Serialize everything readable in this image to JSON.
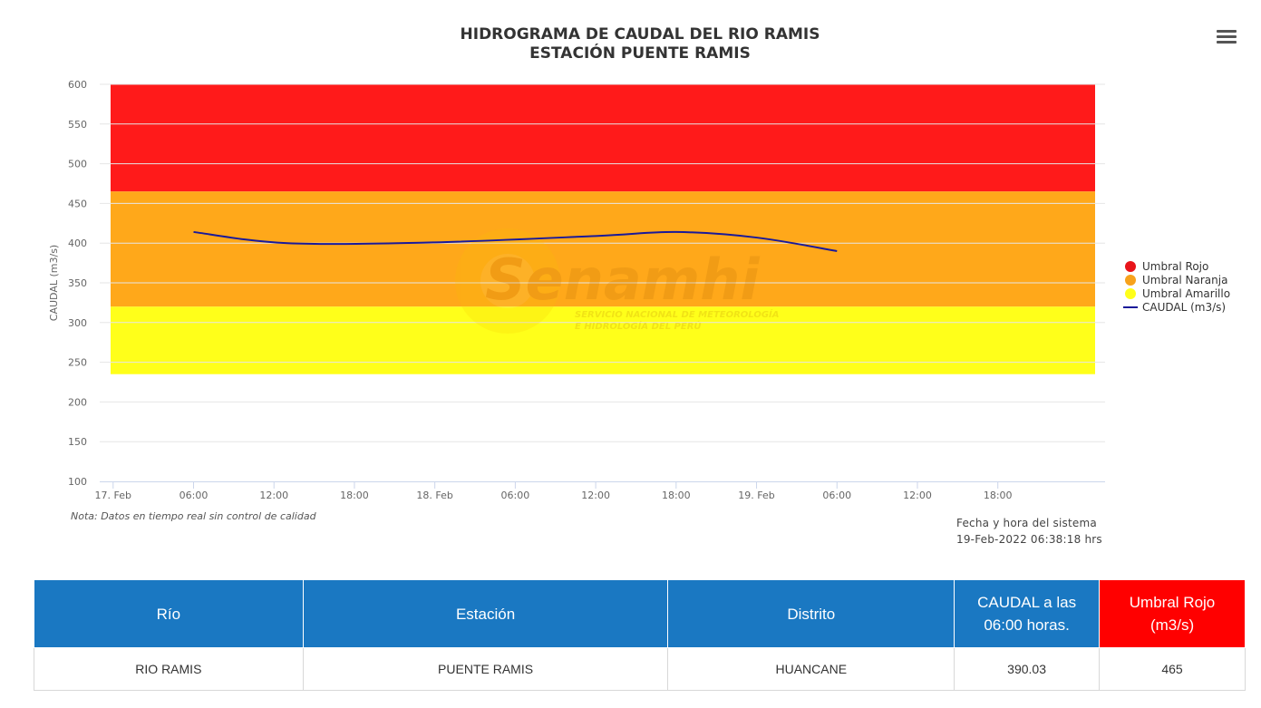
{
  "chart_data": {
    "type": "line",
    "title": "HIDROGRAMA DE CAUDAL DEL RIO RAMIS",
    "subtitle": "ESTACIÓN PUENTE RAMIS",
    "ylabel": "CAUDAL (m3/s)",
    "xlabel": "",
    "ylim": [
      100,
      600
    ],
    "yticks": [
      100,
      150,
      200,
      250,
      300,
      350,
      400,
      450,
      500,
      550,
      600
    ],
    "xlim": [
      "2022-02-16 23:00",
      "2022-02-20 02:00"
    ],
    "xticks": [
      {
        "t": "2022-02-17 00:00",
        "label": "17. Feb"
      },
      {
        "t": "2022-02-17 06:00",
        "label": "06:00"
      },
      {
        "t": "2022-02-17 12:00",
        "label": "12:00"
      },
      {
        "t": "2022-02-17 18:00",
        "label": "18:00"
      },
      {
        "t": "2022-02-18 00:00",
        "label": "18. Feb"
      },
      {
        "t": "2022-02-18 06:00",
        "label": "06:00"
      },
      {
        "t": "2022-02-18 12:00",
        "label": "12:00"
      },
      {
        "t": "2022-02-18 18:00",
        "label": "18:00"
      },
      {
        "t": "2022-02-19 00:00",
        "label": "19. Feb"
      },
      {
        "t": "2022-02-19 06:00",
        "label": "06:00"
      },
      {
        "t": "2022-02-19 12:00",
        "label": "12:00"
      },
      {
        "t": "2022-02-19 18:00",
        "label": "18:00"
      }
    ],
    "bands": [
      {
        "name": "Umbral Rojo",
        "from": 465,
        "to": 600,
        "color": "#ff1a1a"
      },
      {
        "name": "Umbral Naranja",
        "from": 320,
        "to": 465,
        "color": "#ffa81a"
      },
      {
        "name": "Umbral Amarillo",
        "from": 235,
        "to": 320,
        "color": "#ffff1a"
      }
    ],
    "series": [
      {
        "name": "CAUDAL (m3/s)",
        "color": "#1a1a99",
        "points": [
          {
            "t": "2022-02-17 06:00",
            "y": 414
          },
          {
            "t": "2022-02-17 13:00",
            "y": 400
          },
          {
            "t": "2022-02-18 00:00",
            "y": 401
          },
          {
            "t": "2022-02-18 12:00",
            "y": 409
          },
          {
            "t": "2022-02-18 18:00",
            "y": 414
          },
          {
            "t": "2022-02-19 00:00",
            "y": 407
          },
          {
            "t": "2022-02-19 06:00",
            "y": 390
          }
        ]
      }
    ],
    "legend": [
      {
        "label": "Umbral Rojo",
        "color": "#e8141a",
        "kind": "dot"
      },
      {
        "label": "Umbral Naranja",
        "color": "#f7a21c",
        "kind": "dot"
      },
      {
        "label": "Umbral Amarillo",
        "color": "#ffff1a",
        "kind": "dot"
      },
      {
        "label": "CAUDAL (m3/s)",
        "color": "#1a1a99",
        "kind": "line"
      }
    ],
    "legend_position": "right",
    "grid": true
  },
  "watermark": {
    "brand": "Senamhi",
    "line1": "SERVICIO NACIONAL DE METEOROLOGÍA",
    "line2": "E HIDROLOGÍA DEL PERÚ"
  },
  "note": "Nota: Datos en tiempo real sin control de calidad",
  "system_date": {
    "label": "Fecha y hora del sistema",
    "value": "19-Feb-2022 06:38:18 hrs"
  },
  "table": {
    "headers": {
      "rio": "Río",
      "estacion": "Estación",
      "distrito": "Distrito",
      "caudal_l1": "CAUDAL a las",
      "caudal_l2": "06:00 horas.",
      "umbral_l1": "Umbral Rojo",
      "umbral_l2": "(m3/s)"
    },
    "row": {
      "rio": "RIO RAMIS",
      "estacion": "PUENTE RAMIS",
      "distrito": "HUANCANE",
      "caudal": "390.03",
      "umbral": "465"
    }
  }
}
